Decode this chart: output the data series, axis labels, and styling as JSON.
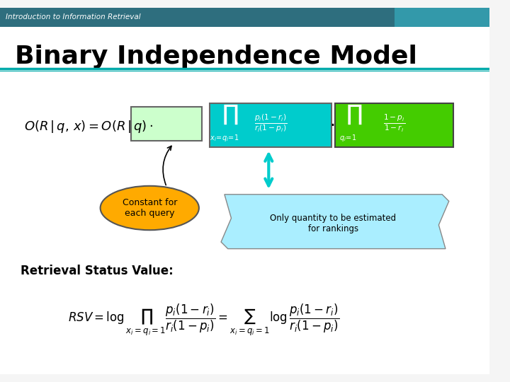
{
  "title": "Binary Independence Model",
  "header": "Introduction to Information Retrieval",
  "header_bg": "#2e6e7e",
  "header_text_color": "#ffffff",
  "slide_bg": "#f0f8f8",
  "title_color": "#000000",
  "title_fontsize": 26,
  "teal_line_color": "#00aaaa",
  "formula1_latex": "O(R\\,|\\,q,\\,x) = O(R\\,|\\,q)\\cdot\\prod_{x_i=q_i=1}\\frac{p_i(1-r_i)}{r_i(1-p_i)}\\cdot\\prod_{q_i=1}\\frac{1-p_i}{1-r_i}",
  "formula2_latex": "RSV = \\log\\prod_{x_i=q_i=1}\\frac{p_i(1-r_i)}{r_i(1-p_i)} = \\sum_{x_i=q_i=1}\\log\\frac{p_i(1-r_i)}{r_i(1-p_i)}",
  "cyan_box_color": "#00cccc",
  "green_box_color": "#44cc00",
  "light_green_box_color": "#ccffcc",
  "orange_ellipse_color": "#ffaa00",
  "cyan_scroll_color": "#aaeeff",
  "constant_label": "Constant for\neach query",
  "only_quantity_label": "Only quantity to be estimated\nfor rankings",
  "rsv_label": "Retrieval Status Value:"
}
